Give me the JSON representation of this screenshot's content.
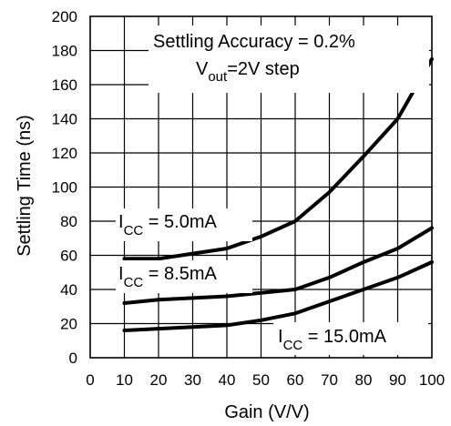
{
  "chart_data": {
    "type": "line",
    "xlabel": "Gain (V/V)",
    "ylabel": "Settling Time (ns)",
    "xlim": [
      0,
      100
    ],
    "ylim": [
      0,
      200
    ],
    "xticks": [
      "0",
      "10",
      "20",
      "30",
      "40",
      "50",
      "60",
      "70",
      "80",
      "90",
      "100"
    ],
    "yticks": [
      "0",
      "20",
      "40",
      "60",
      "80",
      "100",
      "120",
      "140",
      "160",
      "180",
      "200"
    ],
    "grid": true,
    "annotation": {
      "line1": "Settling Accuracy = 0.2%",
      "line2_prefix": "V",
      "line2_sub": "out",
      "line2_suffix": "=2V step"
    },
    "series": [
      {
        "label_prefix": "I",
        "label_sub": "CC",
        "label_suffix": " = 5.0mA",
        "x": [
          10,
          20,
          30,
          40,
          50,
          60,
          70,
          80,
          90,
          100
        ],
        "y": [
          58,
          58,
          61,
          64,
          71,
          80,
          97,
          118,
          140,
          175
        ]
      },
      {
        "label_prefix": "I",
        "label_sub": "CC",
        "label_suffix": " = 8.5mA",
        "x": [
          10,
          20,
          30,
          40,
          50,
          60,
          70,
          80,
          90,
          100
        ],
        "y": [
          32,
          34,
          35,
          36,
          38,
          40,
          47,
          56,
          64,
          76
        ]
      },
      {
        "label_prefix": "I",
        "label_sub": "CC",
        "label_suffix": " = 15.0mA",
        "x": [
          10,
          20,
          30,
          40,
          50,
          60,
          70,
          80,
          90,
          100
        ],
        "y": [
          16,
          17,
          18,
          19,
          22,
          26,
          33,
          40,
          47,
          56
        ]
      }
    ]
  }
}
